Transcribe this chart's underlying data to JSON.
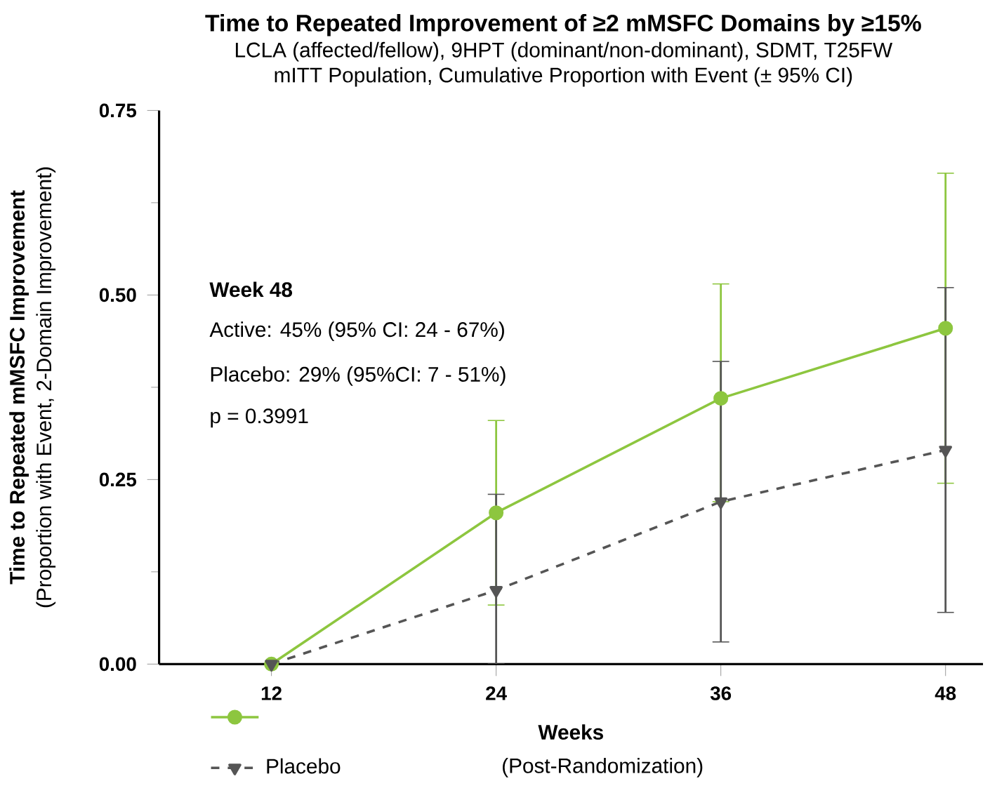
{
  "chart_data": {
    "type": "line",
    "title": "Time to Repeated Improvement of ≥2 mMSFC Domains by ≥15%",
    "subtitle": "LCLA (affected/fellow), 9HPT (dominant/non-dominant), SDMT, T25FW",
    "xlabel": "Weeks",
    "ylabel": "Time to Repeated mMSFC Improvement",
    "annotations": [
      "mITT Population, Cumulative Proportion with Event (± 95% CI)",
      "(Proportion with Event, 2-Domain Improvement)",
      "(Post-Randomization)",
      "Week 48",
      "Active: 45% (95% CI: 24 - 67%)",
      "Placebo: 29% (95%CI: 7 - 51%)",
      "p = 0.3991"
    ],
    "x": [
      12,
      24,
      36,
      48
    ],
    "series": [
      {
        "color": "#8dc63f",
        "values": [
          0,
          0.205,
          0.36,
          0.455
        ],
        "errors": [
          null,
          [
            0.08,
            0.33
          ],
          [
            0.22,
            0.515
          ],
          [
            0.245,
            0.665
          ]
        ],
        "marker": "circle",
        "line_style": "solid"
      },
      {
        "name": "Placebo",
        "color": "#555555",
        "values": [
          0,
          0.1,
          0.22,
          0.29
        ],
        "errors": [
          null,
          [
            0,
            0.23
          ],
          [
            0.03,
            0.41
          ],
          [
            0.07,
            0.51
          ]
        ],
        "marker": "triangle",
        "line_style": "dashed"
      }
    ],
    "xlim": [
      6,
      50
    ],
    "xticks": [
      12,
      24,
      36,
      48
    ],
    "ylim": [
      0,
      0.75
    ],
    "yticks": [
      {
        "value": 0,
        "label": "0.00"
      },
      {
        "value": 0.25,
        "label": "0.25"
      },
      {
        "value": 0.5,
        "label": "0.50"
      },
      {
        "value": 0.75,
        "label": "0.75"
      }
    ],
    "grid": false,
    "legend": "bottom left"
  }
}
